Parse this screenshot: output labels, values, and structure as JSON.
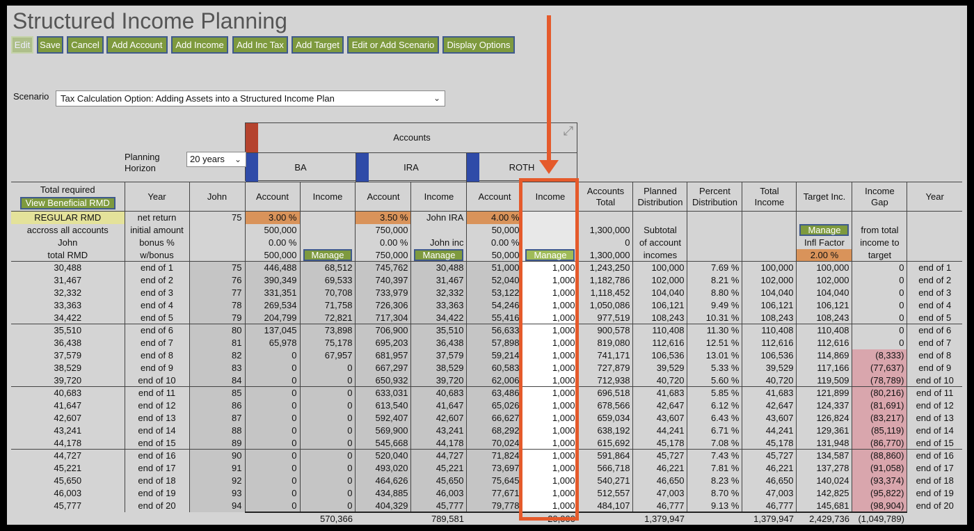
{
  "title": "Structured Income Planning",
  "toolbar": [
    {
      "label": "Edit",
      "disabled": true
    },
    {
      "label": "Save"
    },
    {
      "label": "Cancel"
    },
    {
      "label": "Add Account"
    },
    {
      "label": "Add Income"
    },
    {
      "label": "Add Inc Tax"
    },
    {
      "label": "Add Target"
    },
    {
      "label": "Edit or Add Scenario"
    },
    {
      "label": "Display Options"
    }
  ],
  "scenario": {
    "label": "Scenario",
    "value": "Tax Calculation Option: Adding Assets into a Structured Income Plan"
  },
  "planning": {
    "label1": "Planning",
    "label2": "Horizon",
    "value": "20 years"
  },
  "accounts": {
    "title": "Accounts",
    "groups": [
      "BA",
      "IRA",
      "ROTH"
    ]
  },
  "headers": {
    "total_required": "Total required",
    "view_rmd_button": "View Beneficial RMD",
    "year": "Year",
    "john": "John",
    "account": "Account",
    "income": "Income",
    "accounts_total": "Accounts Total",
    "planned_distribution": "Planned Distribution",
    "percent_distribution": "Percent Distribution",
    "total_income": "Total Income",
    "target_inc": "Target Inc.",
    "income_gap": "Income Gap",
    "year_right": "Year"
  },
  "params": {
    "rows": [
      [
        "REGULAR RMD",
        "net return",
        "75",
        "3.00  %",
        "",
        "3.50  %",
        "John IRA",
        "4.00  %",
        "",
        "",
        "",
        "",
        "",
        "",
        "",
        ""
      ],
      [
        "accross all accounts",
        "initial amount",
        "",
        "500,000",
        "",
        "750,000",
        "",
        "50,000",
        "",
        "1,300,000",
        "Subtotal",
        "",
        "",
        "",
        "from total",
        ""
      ],
      [
        "John",
        "bonus %",
        "",
        "0.00  %",
        "",
        "0.00  %",
        "John inc",
        "0.00  %",
        "",
        "0",
        "of account",
        "",
        "",
        "Infl Factor",
        "income to",
        ""
      ],
      [
        "total RMD",
        "w/bonus",
        "",
        "500,000",
        "",
        "750,000",
        "",
        "50,000",
        "",
        "1,300,000",
        "incomes",
        "",
        "",
        "2.00  %",
        "target",
        ""
      ]
    ],
    "manage_label": "Manage"
  },
  "rows": [
    [
      "30,488",
      "end of 1",
      "75",
      "446,488",
      "68,512",
      "745,762",
      "30,488",
      "51,000",
      "1,000",
      "1,243,250",
      "100,000",
      "7.69  %",
      "100,000",
      "100,000",
      "0",
      "end of 1"
    ],
    [
      "31,467",
      "end of 2",
      "76",
      "390,349",
      "69,533",
      "740,397",
      "31,467",
      "52,040",
      "1,000",
      "1,182,786",
      "102,000",
      "8.21  %",
      "102,000",
      "102,000",
      "0",
      "end of 2"
    ],
    [
      "32,332",
      "end of 3",
      "77",
      "331,351",
      "70,708",
      "733,979",
      "32,332",
      "53,122",
      "1,000",
      "1,118,452",
      "104,040",
      "8.80  %",
      "104,040",
      "104,040",
      "0",
      "end of 3"
    ],
    [
      "33,363",
      "end of 4",
      "78",
      "269,534",
      "71,758",
      "726,306",
      "33,363",
      "54,246",
      "1,000",
      "1,050,086",
      "106,121",
      "9.49  %",
      "106,121",
      "106,121",
      "0",
      "end of 4"
    ],
    [
      "34,422",
      "end of 5",
      "79",
      "204,799",
      "72,821",
      "717,304",
      "34,422",
      "55,416",
      "1,000",
      "977,519",
      "108,243",
      "10.31  %",
      "108,243",
      "108,243",
      "0",
      "end of 5"
    ],
    [
      "35,510",
      "end of 6",
      "80",
      "137,045",
      "73,898",
      "706,900",
      "35,510",
      "56,633",
      "1,000",
      "900,578",
      "110,408",
      "11.30  %",
      "110,408",
      "110,408",
      "0",
      "end of 6"
    ],
    [
      "36,438",
      "end of 7",
      "81",
      "65,978",
      "75,178",
      "695,203",
      "36,438",
      "57,898",
      "1,000",
      "819,080",
      "112,616",
      "12.51  %",
      "112,616",
      "112,616",
      "0",
      "end of 7"
    ],
    [
      "37,579",
      "end of 8",
      "82",
      "0",
      "67,957",
      "681,957",
      "37,579",
      "59,214",
      "1,000",
      "741,171",
      "106,536",
      "13.01  %",
      "106,536",
      "114,869",
      "(8,333)",
      "end of 8"
    ],
    [
      "38,529",
      "end of 9",
      "83",
      "0",
      "0",
      "667,297",
      "38,529",
      "60,583",
      "1,000",
      "727,879",
      "39,529",
      "5.33  %",
      "39,529",
      "117,166",
      "(77,637)",
      "end of 9"
    ],
    [
      "39,720",
      "end of 10",
      "84",
      "0",
      "0",
      "650,932",
      "39,720",
      "62,006",
      "1,000",
      "712,938",
      "40,720",
      "5.60  %",
      "40,720",
      "119,509",
      "(78,789)",
      "end of 10"
    ],
    [
      "40,683",
      "end of 11",
      "85",
      "0",
      "0",
      "633,031",
      "40,683",
      "63,486",
      "1,000",
      "696,518",
      "41,683",
      "5.85  %",
      "41,683",
      "121,899",
      "(80,216)",
      "end of 11"
    ],
    [
      "41,647",
      "end of 12",
      "86",
      "0",
      "0",
      "613,540",
      "41,647",
      "65,026",
      "1,000",
      "678,566",
      "42,647",
      "6.12  %",
      "42,647",
      "124,337",
      "(81,691)",
      "end of 12"
    ],
    [
      "42,607",
      "end of 13",
      "87",
      "0",
      "0",
      "592,407",
      "42,607",
      "66,627",
      "1,000",
      "659,034",
      "43,607",
      "6.43  %",
      "43,607",
      "126,824",
      "(83,217)",
      "end of 13"
    ],
    [
      "43,241",
      "end of 14",
      "88",
      "0",
      "0",
      "569,900",
      "43,241",
      "68,292",
      "1,000",
      "638,192",
      "44,241",
      "6.71  %",
      "44,241",
      "129,361",
      "(85,119)",
      "end of 14"
    ],
    [
      "44,178",
      "end of 15",
      "89",
      "0",
      "0",
      "545,668",
      "44,178",
      "70,024",
      "1,000",
      "615,692",
      "45,178",
      "7.08  %",
      "45,178",
      "131,948",
      "(86,770)",
      "end of 15"
    ],
    [
      "44,727",
      "end of 16",
      "90",
      "0",
      "0",
      "520,040",
      "44,727",
      "71,824",
      "1,000",
      "591,864",
      "45,727",
      "7.43  %",
      "45,727",
      "134,587",
      "(88,860)",
      "end of 16"
    ],
    [
      "45,221",
      "end of 17",
      "91",
      "0",
      "0",
      "493,020",
      "45,221",
      "73,697",
      "1,000",
      "566,718",
      "46,221",
      "7.81  %",
      "46,221",
      "137,278",
      "(91,058)",
      "end of 17"
    ],
    [
      "45,650",
      "end of 18",
      "92",
      "0",
      "0",
      "464,626",
      "45,650",
      "75,645",
      "1,000",
      "540,271",
      "46,650",
      "8.23  %",
      "46,650",
      "140,024",
      "(93,374)",
      "end of 18"
    ],
    [
      "46,003",
      "end of 19",
      "93",
      "0",
      "0",
      "434,885",
      "46,003",
      "77,671",
      "1,000",
      "512,557",
      "47,003",
      "8.70  %",
      "47,003",
      "142,825",
      "(95,822)",
      "end of 19"
    ],
    [
      "45,777",
      "end of 20",
      "94",
      "0",
      "0",
      "404,329",
      "45,777",
      "79,778",
      "1,000",
      "484,107",
      "46,777",
      "9.13  %",
      "46,777",
      "145,681",
      "(98,904)",
      "end of 20"
    ]
  ],
  "totals": [
    "",
    "",
    "",
    "",
    "570,366",
    "",
    "789,581",
    "",
    "20,000",
    "",
    "1,379,947",
    "",
    "1,379,947",
    "2,429,736",
    "(1,049,789)",
    ""
  ],
  "colors": {
    "background": "#d4d4d4",
    "button_green": "#7e9a3e",
    "button_border": "#3f5a8c",
    "accent_orange": "#e55a2b",
    "param_orange": "#d9935a",
    "rmd_yellow": "#e4e29a",
    "gap_negative": "#d9a6ad",
    "account_red": "#b5432e",
    "account_blue": "#2f4ba8"
  },
  "icons": {
    "collapse": "collapse-arrows-icon",
    "dropdown": "chevron-down-icon",
    "annotation": "down-arrow-annotation-icon"
  }
}
